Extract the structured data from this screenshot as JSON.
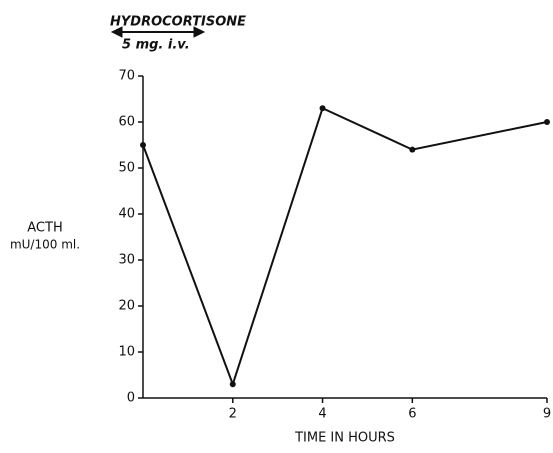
{
  "chart_data": {
    "type": "line",
    "annotations": [
      "HYDROCORTISONE",
      "5 mg. i.v."
    ],
    "ylabel": [
      "ACTH",
      "mU/100 ml."
    ],
    "xlabel": "TIME IN HOURS",
    "x": [
      0,
      2,
      4,
      6,
      9
    ],
    "series": [
      {
        "color": "#111111",
        "values": [
          55,
          3,
          63,
          54,
          60
        ]
      }
    ],
    "xlim": [
      0,
      9
    ],
    "xticks": [
      2,
      4,
      6,
      9
    ],
    "ylim": [
      0,
      70
    ],
    "yticks": [
      0,
      10,
      20,
      30,
      40,
      50,
      60,
      70
    ],
    "grid": false
  }
}
